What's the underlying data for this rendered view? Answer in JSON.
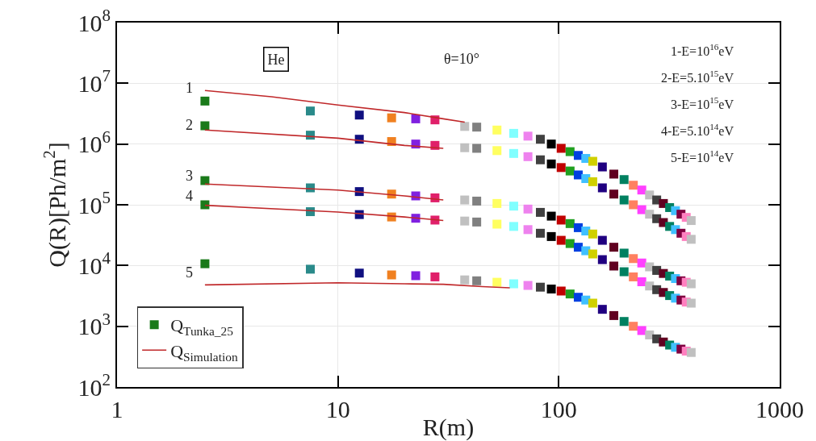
{
  "chart_data": {
    "type": "scatter",
    "xlabel": "R(m)",
    "ylabel": "Q(R)[Ph/m$^{2}$]",
    "log": "xy",
    "grid": true,
    "legend": "bottom left",
    "marker": "square",
    "xlim": [
      1,
      1000
    ],
    "xticks": [
      1,
      10,
      100,
      1000
    ],
    "ylim": [
      100,
      100000000
    ],
    "yticks": [
      {
        "value": 100,
        "label": "10$^{2}$"
      },
      {
        "value": 1000,
        "label": "10$^{3}$"
      },
      {
        "value": 10000,
        "label": "10$^{4}$"
      },
      {
        "value": 100000,
        "label": "10$^{5}$"
      },
      {
        "value": 1000000,
        "label": "10$^{6}$"
      },
      {
        "value": 10000000,
        "label": "10$^{7}$"
      },
      {
        "value": 100000000,
        "label": "10$^{8}$"
      }
    ],
    "x": [
      2.5,
      7.5,
      12.5,
      17.5,
      22.5,
      27.5,
      37.5,
      42.5,
      52.5,
      62.5,
      72.5,
      82.5,
      92.5,
      102.5,
      112.5,
      122.5,
      132.5,
      142.5,
      157.5,
      177.5,
      197.5,
      217.5,
      237.5,
      257.5,
      277.5,
      297.5,
      317.5,
      337.5,
      357.5,
      377.5,
      397.5
    ],
    "annotations": [
      "He",
      "θ=10°",
      "1-E=10$^{16}$eV",
      "2-E=5.10$^{15}$eV",
      "3-E=10$^{15}$eV",
      "4-E=5.10$^{14}$eV",
      "5-E=10$^{14}$eV",
      "1",
      "2",
      "3",
      "4",
      "5"
    ],
    "series": [
      {
        "name": "Q$_{Simulation}$",
        "type": "line",
        "marker": "none",
        "color": "#c0282a",
        "x": [
          2.5,
          5,
          10,
          20,
          30,
          37.5
        ],
        "values": [
          7600000,
          6000000,
          4400000,
          3300000,
          2600000,
          2300000
        ]
      },
      {
        "type": "line",
        "marker": "none",
        "color": "#c0282a",
        "x": [
          2.5,
          10,
          20,
          30
        ],
        "values": [
          1700000,
          1250000,
          950000,
          850000
        ]
      },
      {
        "type": "line",
        "marker": "none",
        "color": "#c0282a",
        "x": [
          2.5,
          10,
          20,
          30
        ],
        "values": [
          220000,
          175000,
          140000,
          120000
        ]
      },
      {
        "type": "line",
        "marker": "none",
        "color": "#c0282a",
        "x": [
          2.5,
          10,
          20,
          30
        ],
        "values": [
          98000,
          76000,
          63000,
          55000
        ]
      },
      {
        "type": "line",
        "marker": "none",
        "color": "#c0282a",
        "x": [
          2.5,
          10,
          20,
          30,
          45,
          60
        ],
        "values": [
          4800,
          5200,
          5000,
          4900,
          4500,
          4300
        ]
      },
      {
        "name": "Q$_{Tunka_25}$",
        "color": "#1a7a1a",
        "colors": [
          "#1a7a1a",
          "#2a8a8a",
          "#101080",
          "#f08020",
          "#8020e0",
          "#e0206a",
          "#c0c0c0",
          "#808080",
          "#ffff60",
          "#80ffff",
          "#ee82ee",
          "#404040",
          "#000000",
          "#c00000",
          "#20a020",
          "#0040e0",
          "#40c0ff",
          "#d0d000",
          "#200080",
          "#600020",
          "#008060",
          "#ff8060",
          "#ff40ff",
          "#c0c0c0",
          "#404040",
          "#600020",
          "#008060",
          "#40c0ff",
          "#800040",
          "#ff80c0",
          "#c0c0c0"
        ],
        "values": [
          5100000,
          3500000,
          3000000,
          2700000,
          2600000,
          2500000,
          1950000,
          1900000,
          1700000,
          1500000,
          1350000,
          1200000,
          1000000,
          850000,
          750000,
          650000,
          580000,
          520000,
          420000,
          320000,
          260000,
          210000,
          175000,
          145000,
          120000,
          105000,
          90000,
          80000,
          70000,
          62000,
          55000
        ]
      },
      {
        "colors": [
          "#1a7a1a",
          "#2a8a8a",
          "#101080",
          "#f08020",
          "#8020e0",
          "#e0206a",
          "#c0c0c0",
          "#808080",
          "#ffff60",
          "#80ffff",
          "#ee82ee",
          "#404040",
          "#000000",
          "#c00000",
          "#20a020",
          "#0040e0",
          "#40c0ff",
          "#d0d000",
          "#200080",
          "#600020",
          "#008060",
          "#ff8060",
          "#ff40ff",
          "#c0c0c0",
          "#404040",
          "#600020",
          "#008060",
          "#40c0ff",
          "#800040",
          "#ff80c0",
          "#c0c0c0"
        ],
        "values": [
          2000000,
          1400000,
          1200000,
          1100000,
          1000000,
          950000,
          870000,
          850000,
          780000,
          700000,
          620000,
          550000,
          470000,
          410000,
          360000,
          310000,
          270000,
          240000,
          190000,
          150000,
          120000,
          100000,
          83000,
          70000,
          59000,
          51000,
          44000,
          39000,
          34000,
          30000,
          27000
        ]
      },
      {
        "colors": [
          "#1a7a1a",
          "#2a8a8a",
          "#101080",
          "#f08020",
          "#8020e0",
          "#e0206a",
          "#c0c0c0",
          "#808080",
          "#ffff60",
          "#80ffff",
          "#ee82ee",
          "#404040",
          "#000000",
          "#c00000",
          "#20a020",
          "#0040e0",
          "#40c0ff",
          "#d0d000",
          "#200080",
          "#600020",
          "#008060",
          "#ff8060",
          "#ff40ff",
          "#c0c0c0",
          "#404040",
          "#600020",
          "#008060",
          "#40c0ff",
          "#800040",
          "#ff80c0",
          "#c0c0c0"
        ],
        "values": [
          250000,
          190000,
          165000,
          150000,
          140000,
          130000,
          120000,
          115000,
          105000,
          95000,
          85000,
          75000,
          65000,
          56000,
          49000,
          42000,
          37000,
          33000,
          26000,
          20000,
          16000,
          13000,
          11000,
          9500,
          8300,
          7400,
          6700,
          6100,
          5600,
          5300,
          5000
        ]
      },
      {
        "colors": [
          "#1a7a1a",
          "#2a8a8a",
          "#101080",
          "#f08020",
          "#8020e0",
          "#e0206a",
          "#c0c0c0",
          "#808080",
          "#ffff60",
          "#80ffff",
          "#ee82ee",
          "#404040",
          "#000000",
          "#c00000",
          "#20a020",
          "#0040e0",
          "#40c0ff",
          "#d0d000",
          "#200080",
          "#600020",
          "#008060",
          "#ff8060",
          "#ff40ff",
          "#c0c0c0",
          "#404040",
          "#600020",
          "#008060",
          "#40c0ff",
          "#800040",
          "#ff80c0",
          "#c0c0c0"
        ],
        "values": [
          100000,
          77000,
          69000,
          63000,
          60000,
          56000,
          54000,
          52000,
          48000,
          44000,
          39000,
          34000,
          30000,
          26000,
          23000,
          20000,
          17500,
          15500,
          12500,
          9800,
          7900,
          6500,
          5400,
          4600,
          4000,
          3600,
          3200,
          2900,
          2700,
          2500,
          2400
        ]
      },
      {
        "colors": [
          "#1a7a1a",
          "#2a8a8a",
          "#101080",
          "#f08020",
          "#8020e0",
          "#e0206a",
          "#c0c0c0",
          "#808080",
          "#ffff60",
          "#80ffff",
          "#ee82ee",
          "#404040",
          "#000000",
          "#c00000",
          "#20a020",
          "#0040e0",
          "#40c0ff",
          "#d0d000",
          "#200080",
          "#600020",
          "#008060",
          "#ff8060",
          "#ff40ff",
          "#c0c0c0",
          "#404040",
          "#600020",
          "#008060",
          "#40c0ff",
          "#800040",
          "#ff80c0",
          "#c0c0c0"
        ],
        "values": [
          10700,
          8700,
          7500,
          7000,
          6800,
          6500,
          5800,
          5600,
          5300,
          5000,
          4700,
          4400,
          4100,
          3800,
          3400,
          3000,
          2700,
          2400,
          1900,
          1500,
          1200,
          1000,
          850,
          720,
          620,
          550,
          490,
          450,
          420,
          390,
          370
        ]
      }
    ]
  }
}
